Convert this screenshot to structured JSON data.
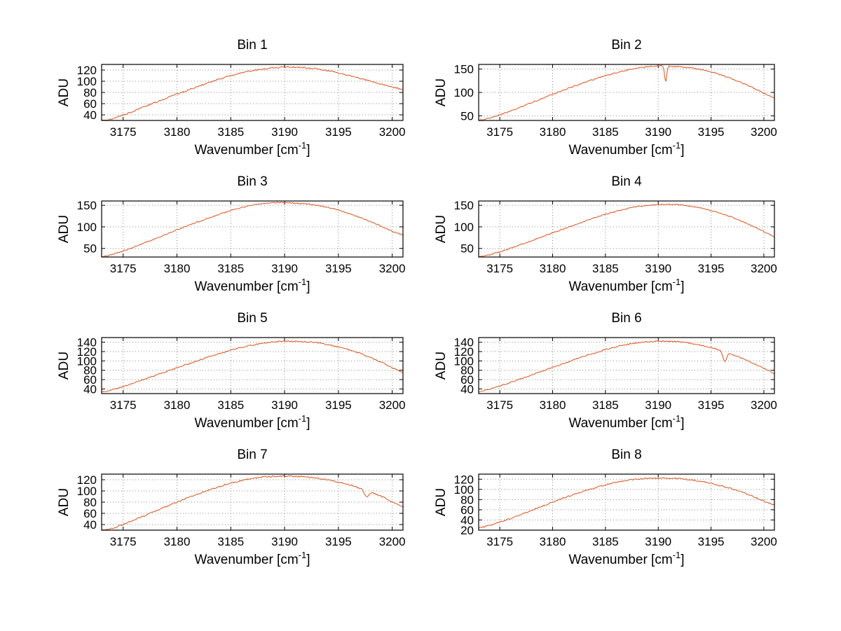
{
  "page": {
    "background": "#ffffff"
  },
  "chart_meta": {
    "line_color": "#d9531e",
    "grid_color": "#8a8a8a",
    "axis_color": "#000000",
    "ylabel": "ADU",
    "xlabel": "Wavenumber [cm^-1]",
    "grid": "dotted",
    "legend": "none"
  },
  "chart_data": [
    {
      "type": "line",
      "title": "Bin 1",
      "xlabel": "Wavenumber [cm^-1]",
      "ylabel": "ADU",
      "xlim": [
        3173,
        3201
      ],
      "ylim": [
        30,
        130
      ],
      "xticks": [
        3175,
        3180,
        3185,
        3190,
        3195,
        3200
      ],
      "yticks": [
        40,
        60,
        80,
        100,
        120
      ],
      "x_start": 3173,
      "x_step": 1,
      "values": [
        28,
        33,
        40,
        47,
        55,
        62,
        70,
        77,
        84,
        91,
        98,
        104,
        110,
        115,
        119,
        122,
        124,
        125,
        125,
        124,
        122,
        119,
        115,
        110,
        105,
        100,
        95,
        90,
        85
      ],
      "dips": []
    },
    {
      "type": "line",
      "title": "Bin 2",
      "xlabel": "Wavenumber [cm^-1]",
      "ylabel": "ADU",
      "xlim": [
        3173,
        3201
      ],
      "ylim": [
        40,
        160
      ],
      "xticks": [
        3175,
        3180,
        3185,
        3190,
        3195,
        3200
      ],
      "yticks": [
        50,
        100,
        150
      ],
      "x_start": 3173,
      "x_step": 1,
      "values": [
        40,
        45,
        52,
        60,
        69,
        78,
        87,
        96,
        105,
        113,
        121,
        129,
        136,
        142,
        148,
        152,
        155,
        157,
        156,
        155,
        153,
        149,
        144,
        137,
        129,
        120,
        110,
        98,
        88
      ],
      "dips": [
        {
          "x": 3190.7,
          "depth": 34,
          "width": 0.1
        }
      ]
    },
    {
      "type": "line",
      "title": "Bin 3",
      "xlabel": "Wavenumber [cm^-1]",
      "ylabel": "ADU",
      "xlim": [
        3173,
        3201
      ],
      "ylim": [
        30,
        160
      ],
      "xticks": [
        3175,
        3180,
        3185,
        3190,
        3195,
        3200
      ],
      "yticks": [
        50,
        100,
        150
      ],
      "x_start": 3173,
      "x_step": 1,
      "values": [
        30,
        36,
        44,
        53,
        63,
        73,
        83,
        93,
        103,
        112,
        121,
        130,
        138,
        145,
        150,
        154,
        156,
        156,
        155,
        153,
        150,
        145,
        139,
        131,
        122,
        112,
        101,
        90,
        81
      ],
      "dips": []
    },
    {
      "type": "line",
      "title": "Bin 4",
      "xlabel": "Wavenumber [cm^-1]",
      "ylabel": "ADU",
      "xlim": [
        3173,
        3201
      ],
      "ylim": [
        30,
        160
      ],
      "xticks": [
        3175,
        3180,
        3185,
        3190,
        3195,
        3200
      ],
      "yticks": [
        50,
        100,
        150
      ],
      "x_start": 3173,
      "x_step": 1,
      "values": [
        30,
        35,
        42,
        50,
        59,
        68,
        77,
        86,
        95,
        104,
        113,
        121,
        129,
        136,
        142,
        147,
        150,
        152,
        152,
        151,
        148,
        144,
        138,
        131,
        122,
        112,
        101,
        89,
        77
      ],
      "dips": []
    },
    {
      "type": "line",
      "title": "Bin 5",
      "xlabel": "Wavenumber [cm^-1]",
      "ylabel": "ADU",
      "xlim": [
        3173,
        3201
      ],
      "ylim": [
        30,
        150
      ],
      "xticks": [
        3175,
        3180,
        3185,
        3190,
        3195,
        3200
      ],
      "yticks": [
        40,
        60,
        80,
        100,
        120,
        140
      ],
      "x_start": 3173,
      "x_step": 1,
      "values": [
        33,
        38,
        45,
        53,
        61,
        69,
        77,
        85,
        93,
        101,
        109,
        116,
        123,
        129,
        134,
        138,
        141,
        142,
        142,
        141,
        139,
        135,
        130,
        124,
        116,
        107,
        97,
        86,
        75
      ],
      "dips": []
    },
    {
      "type": "line",
      "title": "Bin 6",
      "xlabel": "Wavenumber [cm^-1]",
      "ylabel": "ADU",
      "xlim": [
        3173,
        3201
      ],
      "ylim": [
        30,
        150
      ],
      "xticks": [
        3175,
        3180,
        3185,
        3190,
        3195,
        3200
      ],
      "yticks": [
        40,
        60,
        80,
        100,
        120,
        140
      ],
      "x_start": 3173,
      "x_step": 1,
      "values": [
        34,
        39,
        46,
        54,
        62,
        70,
        78,
        86,
        94,
        102,
        110,
        117,
        124,
        130,
        135,
        139,
        141,
        142,
        142,
        141,
        138,
        134,
        129,
        122,
        114,
        105,
        95,
        84,
        73
      ],
      "dips": [
        {
          "x": 3196.3,
          "depth": 20,
          "width": 0.18
        }
      ]
    },
    {
      "type": "line",
      "title": "Bin 7",
      "xlabel": "Wavenumber [cm^-1]",
      "ylabel": "ADU",
      "xlim": [
        3173,
        3201
      ],
      "ylim": [
        30,
        130
      ],
      "xticks": [
        3175,
        3180,
        3185,
        3190,
        3195,
        3200
      ],
      "yticks": [
        40,
        60,
        80,
        100,
        120
      ],
      "x_start": 3173,
      "x_step": 1,
      "values": [
        28,
        33,
        40,
        48,
        56,
        64,
        72,
        80,
        88,
        95,
        102,
        108,
        114,
        119,
        122,
        125,
        126,
        126,
        126,
        125,
        123,
        120,
        116,
        111,
        105,
        98,
        90,
        81,
        72
      ],
      "dips": [
        {
          "x": 3197.6,
          "depth": 11,
          "width": 0.2
        }
      ]
    },
    {
      "type": "line",
      "title": "Bin 8",
      "xlabel": "Wavenumber [cm^-1]",
      "ylabel": "ADU",
      "xlim": [
        3173,
        3201
      ],
      "ylim": [
        20,
        130
      ],
      "xticks": [
        3175,
        3180,
        3185,
        3190,
        3195,
        3200
      ],
      "yticks": [
        20,
        40,
        60,
        80,
        100,
        120
      ],
      "x_start": 3173,
      "x_step": 1,
      "values": [
        24,
        29,
        36,
        43,
        51,
        59,
        67,
        75,
        83,
        90,
        97,
        103,
        109,
        114,
        118,
        120,
        122,
        122,
        122,
        121,
        119,
        116,
        112,
        107,
        101,
        94,
        86,
        77,
        69
      ],
      "dips": []
    }
  ]
}
